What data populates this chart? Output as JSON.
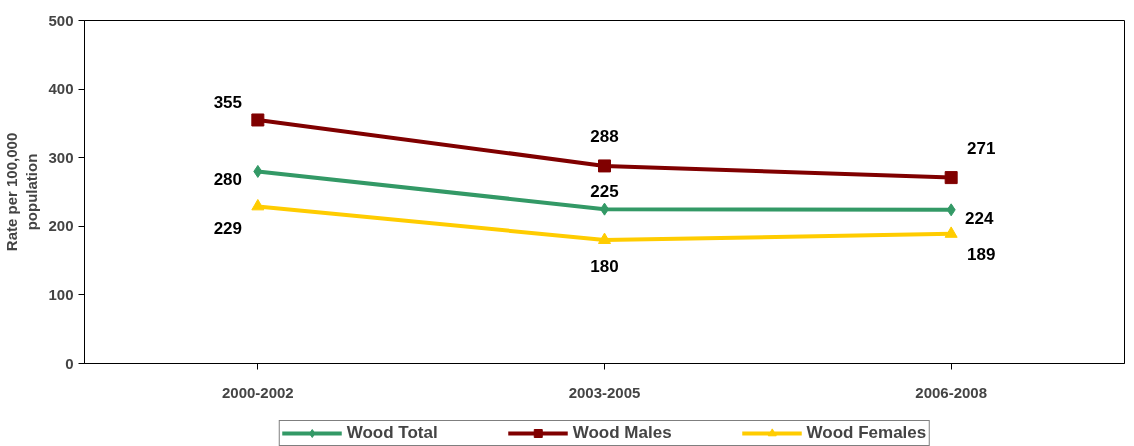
{
  "chart_data": {
    "type": "line",
    "ylabel": "Rate per 100,000 population",
    "categories": [
      "2000-2002",
      "2003-2005",
      "2006-2008"
    ],
    "series": [
      {
        "name": "Wood Total",
        "color": "#339966",
        "marker": "diamond",
        "values": [
          280,
          225,
          224
        ]
      },
      {
        "name": "Wood Males",
        "color": "#800000",
        "marker": "square",
        "values": [
          355,
          288,
          271
        ]
      },
      {
        "name": "Wood Females",
        "color": "#ffcc00",
        "marker": "triangle",
        "values": [
          229,
          180,
          189
        ]
      }
    ],
    "ylim": [
      0,
      500
    ],
    "yticks": [
      0,
      100,
      200,
      300,
      400,
      500
    ],
    "grid": false,
    "legend": "bottom",
    "data_labels": true
  }
}
